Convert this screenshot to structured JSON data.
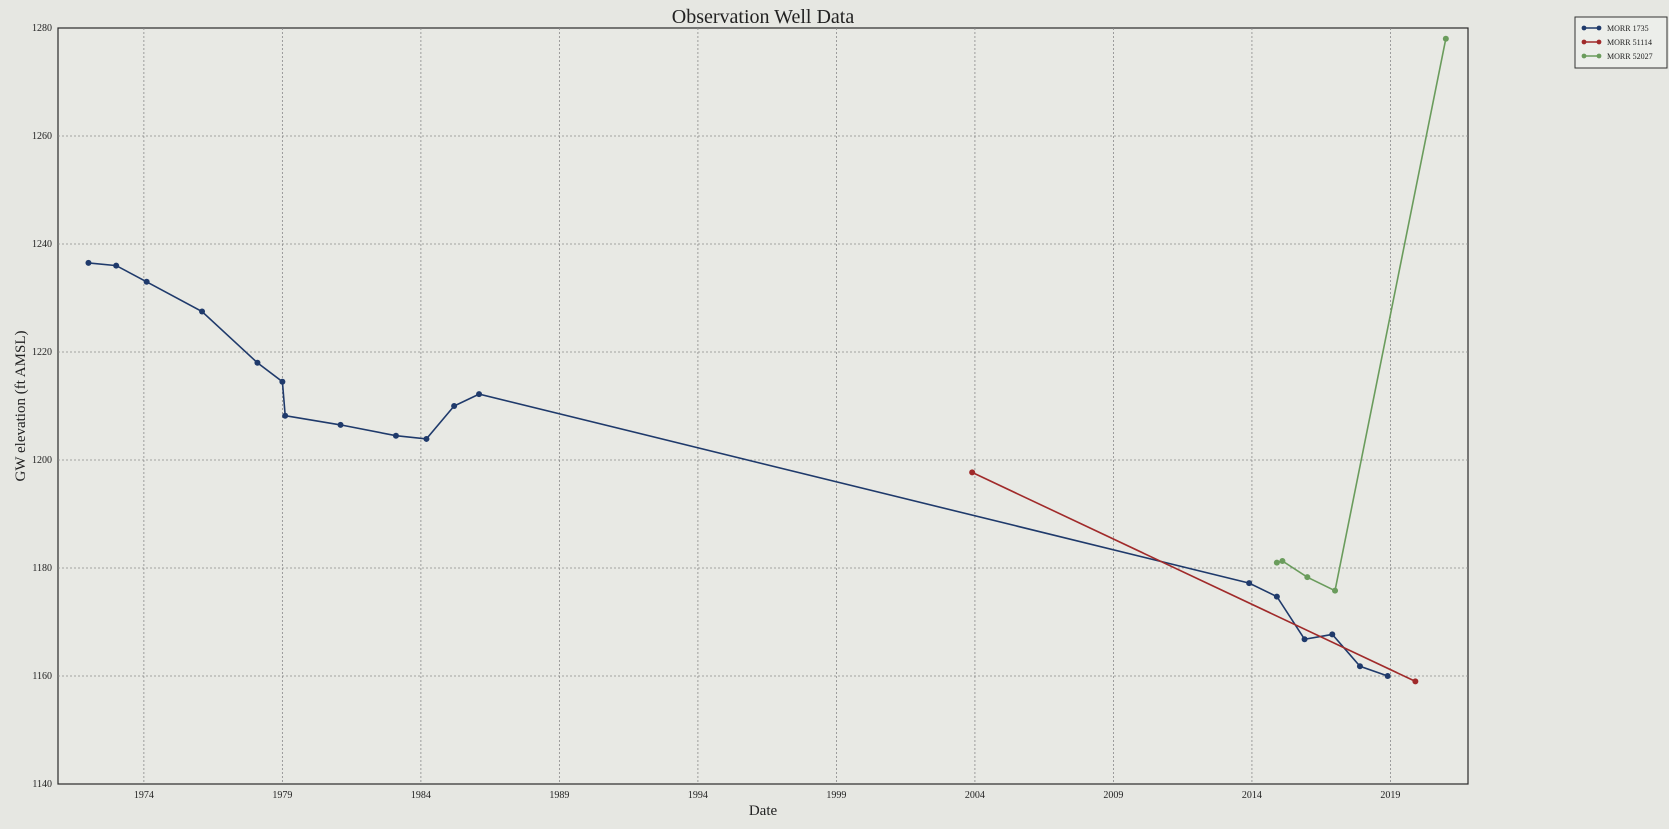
{
  "chart_data": {
    "type": "line",
    "title": "Observation Well Data",
    "xlabel": "Date",
    "ylabel": "GW elevation (ft AMSL)",
    "xlim": [
      1970.9,
      2021.8
    ],
    "ylim": [
      1140,
      1280
    ],
    "x_ticks": [
      1974,
      1979,
      1984,
      1989,
      1994,
      1999,
      2004,
      2009,
      2014,
      2019
    ],
    "y_ticks": [
      1140,
      1160,
      1180,
      1200,
      1220,
      1240,
      1260,
      1280
    ],
    "grid": true,
    "legend_position": "outside-top-right",
    "series": [
      {
        "name": "MORR 1735",
        "color": "#1f3a6b",
        "x": [
          1972.0,
          1973.0,
          1974.1,
          1976.1,
          1978.1,
          1979.0,
          1979.1,
          1981.1,
          1983.1,
          1984.2,
          1985.2,
          1986.1,
          2013.9,
          2014.9,
          2015.9,
          2016.9,
          2017.9,
          2018.9
        ],
        "y": [
          1236.5,
          1236.0,
          1233.0,
          1227.5,
          1218.0,
          1214.5,
          1208.2,
          1206.5,
          1204.5,
          1203.9,
          1210.0,
          1212.2,
          1177.2,
          1174.7,
          1166.8,
          1167.7,
          1161.8,
          1160.0
        ]
      },
      {
        "name": "MORR 51114",
        "color": "#a02a2a",
        "x": [
          2003.9,
          2019.9
        ],
        "y": [
          1197.7,
          1159.0
        ]
      },
      {
        "name": "MORR 52027",
        "color": "#6a9c5c",
        "x": [
          2014.9,
          2015.1,
          2016.0,
          2017.0,
          2021.0
        ],
        "y": [
          1181.0,
          1181.3,
          1178.3,
          1175.8,
          1278.0
        ]
      }
    ]
  }
}
